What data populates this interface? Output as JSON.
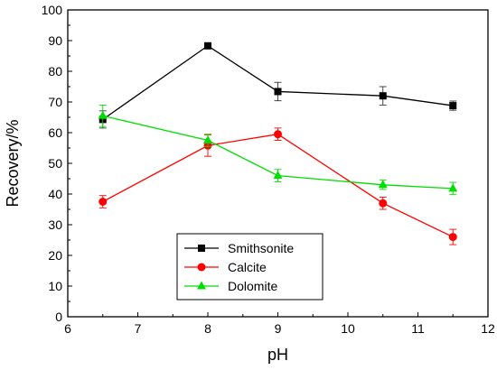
{
  "chart_data": {
    "type": "line",
    "title": "",
    "xlabel": "pH",
    "ylabel": "Recovery/%",
    "xlim": [
      6,
      12
    ],
    "ylim": [
      0,
      100
    ],
    "xticks": [
      "6",
      "7",
      "8",
      "9",
      "10",
      "11",
      "12"
    ],
    "yticks": [
      "0",
      "10",
      "20",
      "30",
      "40",
      "50",
      "60",
      "70",
      "80",
      "90",
      "100"
    ],
    "grid": false,
    "legend_position": "bottom-center",
    "series": [
      {
        "name": "Smithsonite",
        "color": "#000000",
        "marker": "square",
        "x": [
          6.5,
          8,
          9,
          10.5,
          11.5
        ],
        "y": [
          64.3,
          88.3,
          73.4,
          72.0,
          68.8
        ],
        "error": [
          2.8,
          0.5,
          3.0,
          3.0,
          1.5
        ]
      },
      {
        "name": "Calcite",
        "color": "#ff0000",
        "marker": "circle",
        "x": [
          6.5,
          8,
          9,
          10.5,
          11.5
        ],
        "y": [
          37.5,
          55.8,
          59.5,
          37.0,
          26.0
        ],
        "error": [
          2.0,
          3.5,
          2.0,
          2.0,
          2.5
        ]
      },
      {
        "name": "Dolomite",
        "color": "#00dd00",
        "marker": "triangle",
        "x": [
          6.5,
          8,
          9,
          10.5,
          11.5
        ],
        "y": [
          65.5,
          57.5,
          46.0,
          43.0,
          41.8
        ],
        "error": [
          3.5,
          2.0,
          2.0,
          1.5,
          2.0
        ]
      }
    ]
  }
}
